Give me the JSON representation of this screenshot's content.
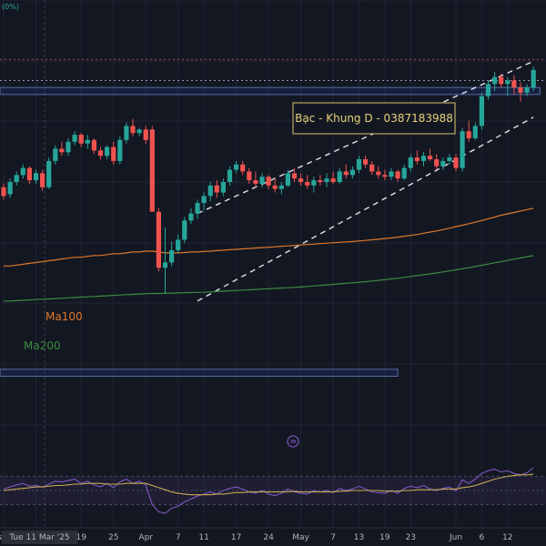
{
  "header": {
    "change_text": "(0%)"
  },
  "annotation": {
    "title": "Bạc - Khung D - 0387183988",
    "border_color": "#d9c36a",
    "text_color": "#e8d27a"
  },
  "colors": {
    "background": "#131722",
    "grid": "#1f2433",
    "up": "#26a69a",
    "down": "#ef5350",
    "ma100": "#e0782a",
    "ma200": "#3d8b40",
    "rsi": "#7e57c2",
    "rsi_ma": "#c8a951",
    "channel": "#e0e3eb",
    "zone": "#2962ff"
  },
  "replay_icon": "play-circle-icon",
  "chart_data": [
    {
      "type": "candlestick",
      "title": "",
      "price_range": [
        0,
        100
      ],
      "grid": "on",
      "x_tick_labels": [
        {
          "label": "ar",
          "index": 0
        },
        {
          "label": "Tue 11 Mar '25",
          "index": 5,
          "highlighted": true
        },
        {
          "label": "19",
          "index": 12
        },
        {
          "label": "25",
          "index": 17
        },
        {
          "label": "Apr",
          "index": 22
        },
        {
          "label": "7",
          "index": 27
        },
        {
          "label": "11",
          "index": 31
        },
        {
          "label": "17",
          "index": 36
        },
        {
          "label": "24",
          "index": 41
        },
        {
          "label": "May",
          "index": 46
        },
        {
          "label": "7",
          "index": 51
        },
        {
          "label": "13",
          "index": 55
        },
        {
          "label": "19",
          "index": 59
        },
        {
          "label": "23",
          "index": 63
        },
        {
          "label": "Jun",
          "index": 70
        },
        {
          "label": "6",
          "index": 74
        },
        {
          "label": "12",
          "index": 78
        }
      ],
      "candles": [
        {
          "o": 3,
          "h": 5,
          "l": -4,
          "c": -2
        },
        {
          "o": -1,
          "h": 8,
          "l": -3,
          "c": 6
        },
        {
          "o": 6,
          "h": 12,
          "l": 4,
          "c": 10
        },
        {
          "o": 10,
          "h": 16,
          "l": 8,
          "c": 14
        },
        {
          "o": 14,
          "h": 15,
          "l": 5,
          "c": 7
        },
        {
          "o": 7,
          "h": 13,
          "l": 5,
          "c": 11
        },
        {
          "o": 11,
          "h": 13,
          "l": 1,
          "c": 3
        },
        {
          "o": 3,
          "h": 20,
          "l": 2,
          "c": 18
        },
        {
          "o": 18,
          "h": 27,
          "l": 16,
          "c": 25
        },
        {
          "o": 25,
          "h": 29,
          "l": 21,
          "c": 23
        },
        {
          "o": 23,
          "h": 31,
          "l": 21,
          "c": 29
        },
        {
          "o": 29,
          "h": 35,
          "l": 27,
          "c": 33
        },
        {
          "o": 33,
          "h": 34,
          "l": 26,
          "c": 28
        },
        {
          "o": 28,
          "h": 33,
          "l": 25,
          "c": 30
        },
        {
          "o": 30,
          "h": 31,
          "l": 22,
          "c": 24
        },
        {
          "o": 24,
          "h": 26,
          "l": 19,
          "c": 21
        },
        {
          "o": 21,
          "h": 27,
          "l": 19,
          "c": 26
        },
        {
          "o": 26,
          "h": 29,
          "l": 16,
          "c": 18
        },
        {
          "o": 18,
          "h": 32,
          "l": 16,
          "c": 30
        },
        {
          "o": 30,
          "h": 40,
          "l": 28,
          "c": 38
        },
        {
          "o": 38,
          "h": 42,
          "l": 32,
          "c": 34
        },
        {
          "o": 34,
          "h": 37,
          "l": 32,
          "c": 36
        },
        {
          "o": 36,
          "h": 38,
          "l": 28,
          "c": 30
        },
        {
          "o": 36,
          "h": 38,
          "l": -10,
          "c": -11
        },
        {
          "o": -11,
          "h": -9,
          "l": -45,
          "c": -43
        },
        {
          "o": -43,
          "h": -20,
          "l": -58,
          "c": -40
        },
        {
          "o": -40,
          "h": -28,
          "l": -42,
          "c": -33
        },
        {
          "o": -33,
          "h": -24,
          "l": -35,
          "c": -27
        },
        {
          "o": -27,
          "h": -14,
          "l": -29,
          "c": -16
        },
        {
          "o": -16,
          "h": -9,
          "l": -18,
          "c": -12
        },
        {
          "o": -12,
          "h": -4,
          "l": -15,
          "c": -6
        },
        {
          "o": -6,
          "h": 0,
          "l": -10,
          "c": -2
        },
        {
          "o": -2,
          "h": 6,
          "l": -5,
          "c": 4
        },
        {
          "o": 4,
          "h": 7,
          "l": -3,
          "c": 0
        },
        {
          "o": 0,
          "h": 8,
          "l": -2,
          "c": 6
        },
        {
          "o": 6,
          "h": 15,
          "l": 4,
          "c": 13
        },
        {
          "o": 13,
          "h": 18,
          "l": 11,
          "c": 16
        },
        {
          "o": 16,
          "h": 18,
          "l": 10,
          "c": 12
        },
        {
          "o": 12,
          "h": 14,
          "l": 5,
          "c": 7
        },
        {
          "o": 7,
          "h": 12,
          "l": 3,
          "c": 5
        },
        {
          "o": 5,
          "h": 11,
          "l": 3,
          "c": 9
        },
        {
          "o": 9,
          "h": 10,
          "l": 2,
          "c": 4
        },
        {
          "o": 4,
          "h": 8,
          "l": 0,
          "c": 2
        },
        {
          "o": 2,
          "h": 6,
          "l": -1,
          "c": 4
        },
        {
          "o": 4,
          "h": 13,
          "l": 3,
          "c": 11
        },
        {
          "o": 11,
          "h": 14,
          "l": 6,
          "c": 8
        },
        {
          "o": 8,
          "h": 11,
          "l": 4,
          "c": 6
        },
        {
          "o": 6,
          "h": 10,
          "l": 2,
          "c": 4
        },
        {
          "o": 4,
          "h": 9,
          "l": 0,
          "c": 7
        },
        {
          "o": 7,
          "h": 10,
          "l": 4,
          "c": 6
        },
        {
          "o": 6,
          "h": 11,
          "l": 3,
          "c": 8
        },
        {
          "o": 8,
          "h": 12,
          "l": 5,
          "c": 6
        },
        {
          "o": 6,
          "h": 14,
          "l": 5,
          "c": 12
        },
        {
          "o": 12,
          "h": 16,
          "l": 8,
          "c": 10
        },
        {
          "o": 10,
          "h": 15,
          "l": 8,
          "c": 13
        },
        {
          "o": 13,
          "h": 21,
          "l": 11,
          "c": 19
        },
        {
          "o": 19,
          "h": 21,
          "l": 14,
          "c": 16
        },
        {
          "o": 16,
          "h": 18,
          "l": 10,
          "c": 12
        },
        {
          "o": 12,
          "h": 15,
          "l": 8,
          "c": 10
        },
        {
          "o": 10,
          "h": 13,
          "l": 7,
          "c": 9
        },
        {
          "o": 9,
          "h": 14,
          "l": 7,
          "c": 12
        },
        {
          "o": 12,
          "h": 13,
          "l": 6,
          "c": 8
        },
        {
          "o": 8,
          "h": 16,
          "l": 7,
          "c": 14
        },
        {
          "o": 14,
          "h": 22,
          "l": 12,
          "c": 20
        },
        {
          "o": 20,
          "h": 24,
          "l": 16,
          "c": 18
        },
        {
          "o": 18,
          "h": 23,
          "l": 15,
          "c": 21
        },
        {
          "o": 21,
          "h": 25,
          "l": 18,
          "c": 19
        },
        {
          "o": 19,
          "h": 22,
          "l": 13,
          "c": 15
        },
        {
          "o": 15,
          "h": 20,
          "l": 13,
          "c": 18
        },
        {
          "o": 18,
          "h": 22,
          "l": 16,
          "c": 20
        },
        {
          "o": 20,
          "h": 22,
          "l": 12,
          "c": 14
        },
        {
          "o": 14,
          "h": 37,
          "l": 12,
          "c": 35
        },
        {
          "o": 35,
          "h": 41,
          "l": 29,
          "c": 31
        },
        {
          "o": 31,
          "h": 40,
          "l": 30,
          "c": 38
        },
        {
          "o": 38,
          "h": 57,
          "l": 36,
          "c": 55
        },
        {
          "o": 55,
          "h": 64,
          "l": 53,
          "c": 62
        },
        {
          "o": 62,
          "h": 69,
          "l": 58,
          "c": 66
        },
        {
          "o": 66,
          "h": 68,
          "l": 60,
          "c": 62
        },
        {
          "o": 62,
          "h": 66,
          "l": 55,
          "c": 64
        },
        {
          "o": 64,
          "h": 67,
          "l": 56,
          "c": 60
        },
        {
          "o": 60,
          "h": 63,
          "l": 52,
          "c": 57
        },
        {
          "o": 57,
          "h": 62,
          "l": 55,
          "c": 60
        },
        {
          "o": 60,
          "h": 72,
          "l": 58,
          "c": 70
        }
      ],
      "ma100": [
        -42,
        -42,
        -41.5,
        -41,
        -40.5,
        -40,
        -39.5,
        -39,
        -38.5,
        -38,
        -37.5,
        -37,
        -37,
        -36.5,
        -36,
        -36,
        -35.5,
        -35,
        -35,
        -34.5,
        -34,
        -34,
        -33.5,
        -33.5,
        -34,
        -34.5,
        -34.5,
        -34.5,
        -34.3,
        -34,
        -34,
        -33.7,
        -33.5,
        -33.2,
        -33,
        -32.7,
        -32.5,
        -32.2,
        -32,
        -31.7,
        -31.5,
        -31.3,
        -31,
        -30.7,
        -30.5,
        -30.2,
        -30,
        -29.7,
        -29.5,
        -29.2,
        -29,
        -28.7,
        -28.5,
        -28.2,
        -28,
        -27.7,
        -27.4,
        -27,
        -26.7,
        -26.3,
        -26,
        -25.5,
        -25,
        -24.5,
        -24,
        -23.3,
        -22.6,
        -22,
        -21.2,
        -20.4,
        -19.5,
        -18.7,
        -17.8,
        -17,
        -16,
        -15,
        -14,
        -13,
        -12.2,
        -11.4,
        -10.6,
        -9.8,
        -9
      ],
      "ma200": [
        -62,
        -62,
        -61.8,
        -61.6,
        -61.4,
        -61.2,
        -61,
        -60.8,
        -60.6,
        -60.4,
        -60.2,
        -60,
        -59.8,
        -59.6,
        -59.4,
        -59.2,
        -59,
        -58.8,
        -58.6,
        -58.4,
        -58.2,
        -58,
        -57.8,
        -57.7,
        -57.7,
        -57.6,
        -57.5,
        -57.4,
        -57.3,
        -57.2,
        -57.1,
        -57,
        -56.8,
        -56.6,
        -56.4,
        -56.2,
        -56,
        -55.8,
        -55.6,
        -55.4,
        -55.2,
        -55,
        -54.8,
        -54.6,
        -54.4,
        -54.2,
        -54,
        -53.7,
        -53.4,
        -53.1,
        -52.8,
        -52.5,
        -52.2,
        -51.9,
        -51.6,
        -51.3,
        -51,
        -50.6,
        -50.2,
        -49.8,
        -49.4,
        -49,
        -48.5,
        -48,
        -47.5,
        -47,
        -46.5,
        -46,
        -45.4,
        -44.8,
        -44.2,
        -43.6,
        -43,
        -42.3,
        -41.6,
        -40.9,
        -40.2,
        -39.5,
        -38.8,
        -38.1,
        -37.4,
        -36.7,
        -36
      ],
      "series": [
        {
          "name": "Ma100",
          "color": "#e0782a"
        },
        {
          "name": "Ma200",
          "color": "#3d8b40"
        }
      ],
      "channel": {
        "upper": [
          {
            "i": 30,
            "v": -12
          },
          {
            "i": 82,
            "v": 75
          }
        ],
        "lower": [
          {
            "i": 30,
            "v": -62
          },
          {
            "i": 82,
            "v": 43
          }
        ]
      },
      "dotted_levels": [
        76,
        64
      ],
      "zones": [
        {
          "top": 60,
          "bottom": 56,
          "i_from": -2,
          "i_to": 83
        },
        {
          "top": -101,
          "bottom": -105,
          "i_from": -2,
          "i_to": 61
        }
      ]
    },
    {
      "type": "line",
      "title": "",
      "grid": "on",
      "series": [
        {
          "name": "",
          "color": "#7e57c2",
          "values": [
            52,
            55,
            58,
            60,
            56,
            57,
            55,
            59,
            63,
            62,
            64,
            66,
            60,
            63,
            58,
            55,
            60,
            54,
            62,
            66,
            60,
            63,
            58,
            30,
            20,
            18,
            25,
            28,
            34,
            38,
            42,
            45,
            48,
            45,
            50,
            53,
            55,
            52,
            48,
            46,
            50,
            45,
            43,
            46,
            52,
            48,
            46,
            45,
            50,
            48,
            50,
            47,
            53,
            50,
            52,
            56,
            52,
            48,
            47,
            46,
            50,
            46,
            53,
            56,
            54,
            57,
            52,
            50,
            53,
            55,
            49,
            65,
            60,
            66,
            74,
            78,
            80,
            76,
            78,
            74,
            72,
            75,
            82
          ]
        },
        {
          "name": "",
          "color": "#c8a951",
          "values": [
            50,
            51,
            52,
            53,
            54,
            55,
            55,
            56,
            57,
            57,
            58,
            59,
            59,
            60,
            60,
            60,
            59,
            59,
            59,
            60,
            60,
            60,
            60,
            57,
            54,
            51,
            48,
            46,
            45,
            44,
            44,
            44,
            44,
            45,
            45,
            46,
            47,
            47,
            48,
            48,
            48,
            48,
            48,
            48,
            48,
            49,
            48,
            48,
            48,
            48,
            48,
            48,
            49,
            49,
            50,
            50,
            50,
            50,
            50,
            49,
            49,
            49,
            50,
            50,
            51,
            51,
            51,
            51,
            52,
            52,
            52,
            54,
            55,
            57,
            60,
            63,
            66,
            68,
            70,
            71,
            72,
            72,
            73
          ]
        }
      ]
    }
  ]
}
